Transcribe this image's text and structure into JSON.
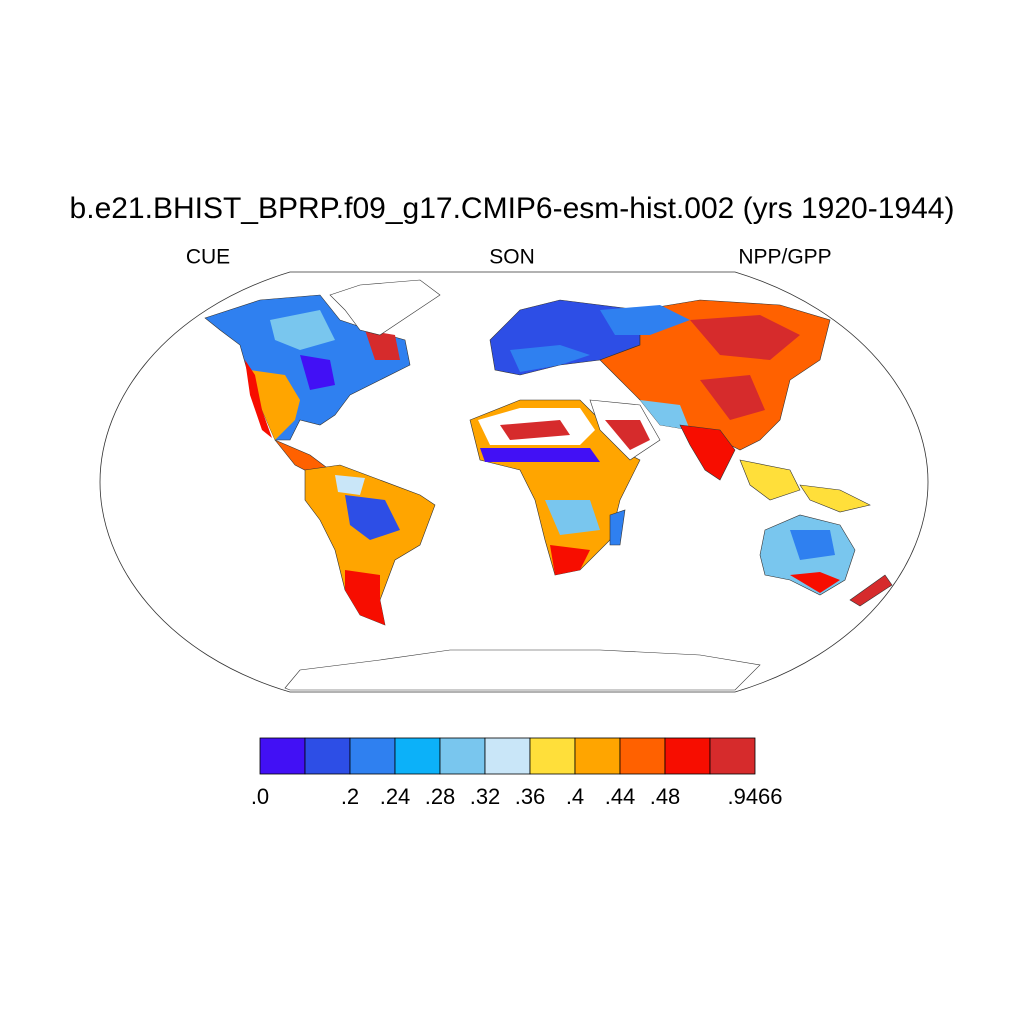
{
  "title": "b.e21.BHIST_BPRP.f09_g17.CMIP6-esm-hist.002 (yrs 1920-1944)",
  "subtitles": {
    "left": "CUE",
    "center": "SON",
    "right": "NPP/GPP"
  },
  "colorbar": {
    "colors": [
      "#4210f5",
      "#2d4ee6",
      "#2f80f0",
      "#0cb1f9",
      "#79c6ee",
      "#c9e6f8",
      "#ffdf3a",
      "#ffa500",
      "#ff6100",
      "#f70d00",
      "#d62b2c"
    ],
    "levels": [
      {
        "value": 0,
        "label": ".0"
      },
      null,
      {
        "value": 0.2,
        "label": ".2"
      },
      {
        "value": 0.24,
        "label": ".24"
      },
      {
        "value": 0.28,
        "label": ".28"
      },
      {
        "value": 0.32,
        "label": ".32"
      },
      {
        "value": 0.36,
        "label": ".36"
      },
      {
        "value": 0.4,
        "label": ".4"
      },
      {
        "value": 0.44,
        "label": ".44"
      },
      {
        "value": 0.48,
        "label": ".48"
      },
      null,
      {
        "value": 0.9466,
        "label": ".9466"
      }
    ]
  }
}
